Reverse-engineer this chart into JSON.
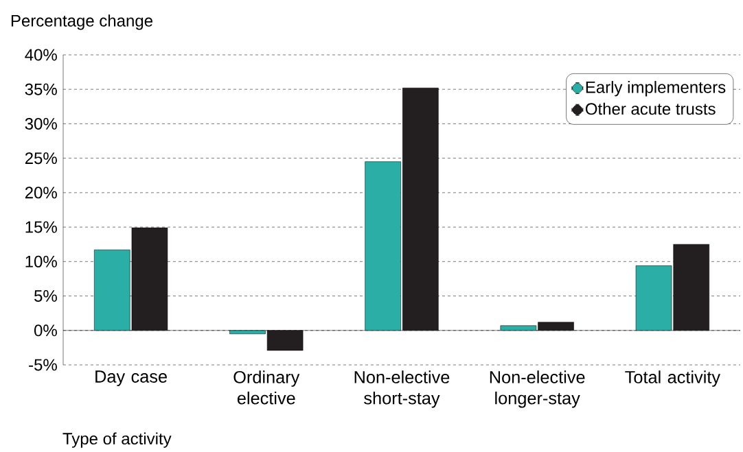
{
  "chart_data": {
    "type": "bar",
    "ylabel": "Percentage change",
    "xlabel": "Type of activity",
    "categories": [
      "Day case",
      "Ordinary elective",
      "Non-elective short-stay",
      "Non-elective longer-stay",
      "Total activity"
    ],
    "series": [
      {
        "name": "Early implementers",
        "color": "#2aaea5",
        "values": [
          11.7,
          -0.5,
          24.5,
          0.7,
          9.4
        ]
      },
      {
        "name": "Other acute trusts",
        "color": "#231f20",
        "values": [
          14.9,
          -2.9,
          35.2,
          1.2,
          12.5
        ]
      }
    ],
    "ylim": [
      -5,
      40
    ],
    "yticks": [
      {
        "value": -5,
        "label": "-5%"
      },
      {
        "value": 0,
        "label": "0%"
      },
      {
        "value": 5,
        "label": "5%"
      },
      {
        "value": 10,
        "label": "10%"
      },
      {
        "value": 15,
        "label": "15%"
      },
      {
        "value": 20,
        "label": "20%"
      },
      {
        "value": 25,
        "label": "25%"
      },
      {
        "value": 30,
        "label": "30%"
      },
      {
        "value": 35,
        "label": "35%"
      },
      {
        "value": 40,
        "label": "40%"
      }
    ],
    "grid": "y",
    "legend": "top right"
  }
}
